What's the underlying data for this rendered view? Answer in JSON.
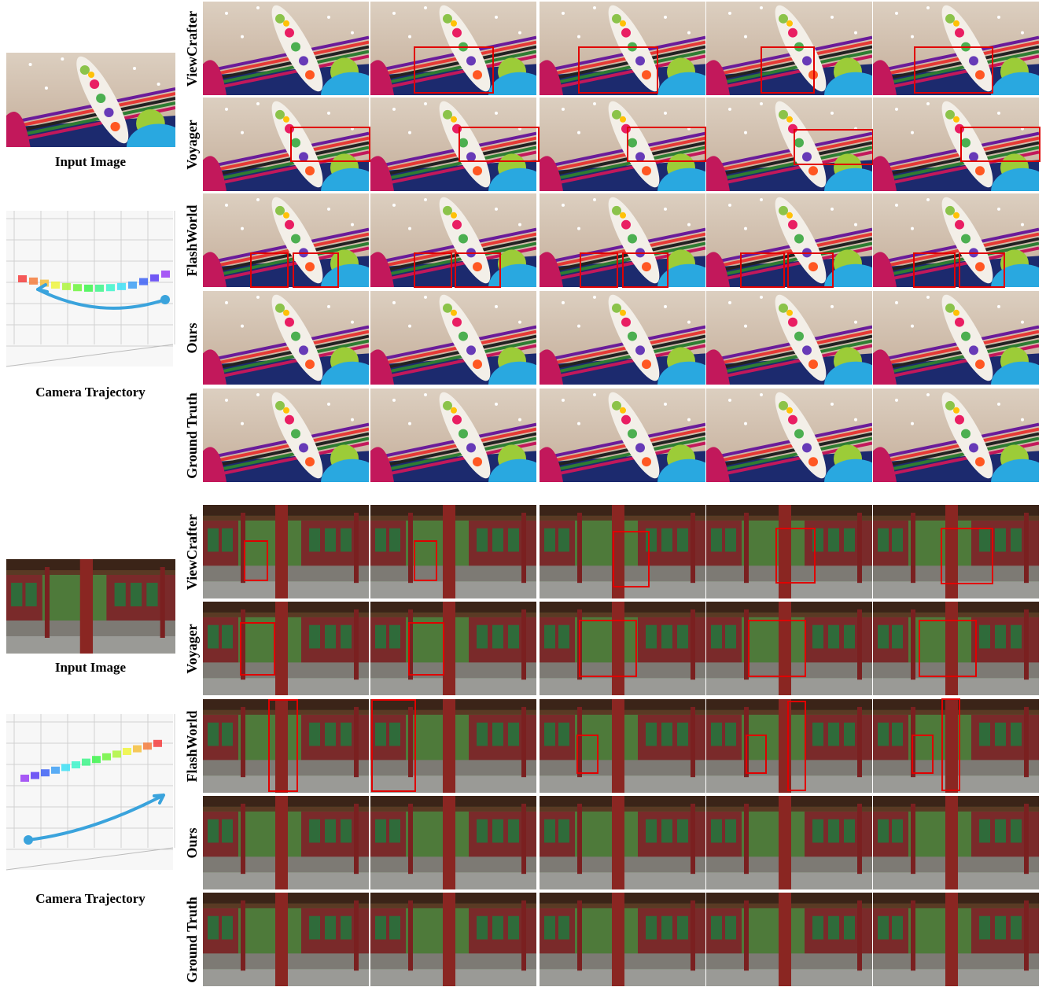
{
  "sections": [
    {
      "input_label": "Input Image",
      "trajectory_label": "Camera Trajectory",
      "rows": [
        "ViewCrafter",
        "Voyager",
        "FlashWorld",
        "Ours",
        "Ground Truth"
      ]
    },
    {
      "input_label": "Input Image",
      "trajectory_label": "Camera Trajectory",
      "rows": [
        "ViewCrafter",
        "Voyager",
        "FlashWorld",
        "Ours",
        "Ground Truth"
      ]
    }
  ]
}
